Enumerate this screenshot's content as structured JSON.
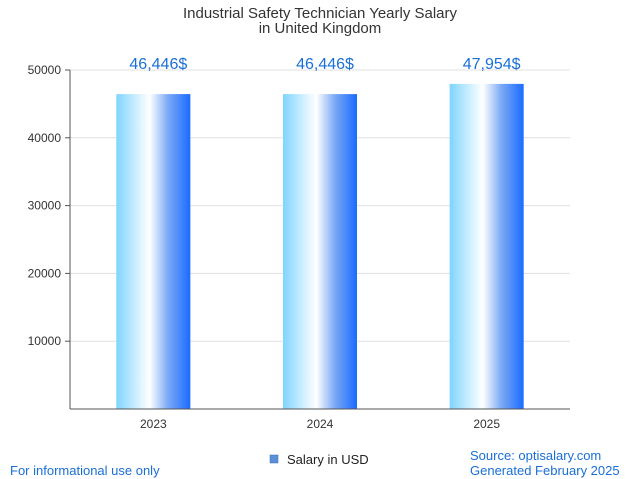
{
  "chart_data": {
    "type": "bar",
    "title_lines": [
      "Industrial Safety Technician Yearly Salary",
      "in United Kingdom"
    ],
    "categories": [
      "2023",
      "2024",
      "2025"
    ],
    "series": [
      {
        "name": "Salary in USD",
        "values": [
          46446,
          46446,
          47954
        ]
      }
    ],
    "data_labels": [
      "46,446$",
      "46,446$",
      "47,954$"
    ],
    "xlabel": "",
    "ylabel": "",
    "ylim": [
      0,
      50000
    ],
    "yticks": [
      {
        "value": 10000,
        "label": "10000"
      },
      {
        "value": 20000,
        "label": "20000"
      },
      {
        "value": 30000,
        "label": "30000"
      },
      {
        "value": 40000,
        "label": "40000"
      },
      {
        "value": 50000,
        "label": "50000"
      }
    ],
    "grid": true,
    "legend_position": "bottom-center"
  },
  "footer": {
    "disclaimer": "For informational use only",
    "source": "Source: optisalary.com",
    "generated": "Generated February 2025"
  },
  "colors": {
    "bar_light": "#bfe9ff",
    "bar_mid": "#ffffff",
    "bar_dark": "#1e6eff",
    "data_label": "#1a6fd6",
    "footer_text": "#1a6fd6",
    "legend_swatch": "#5b8fd6",
    "grid": "#e0e0e0",
    "axis": "#555555"
  }
}
